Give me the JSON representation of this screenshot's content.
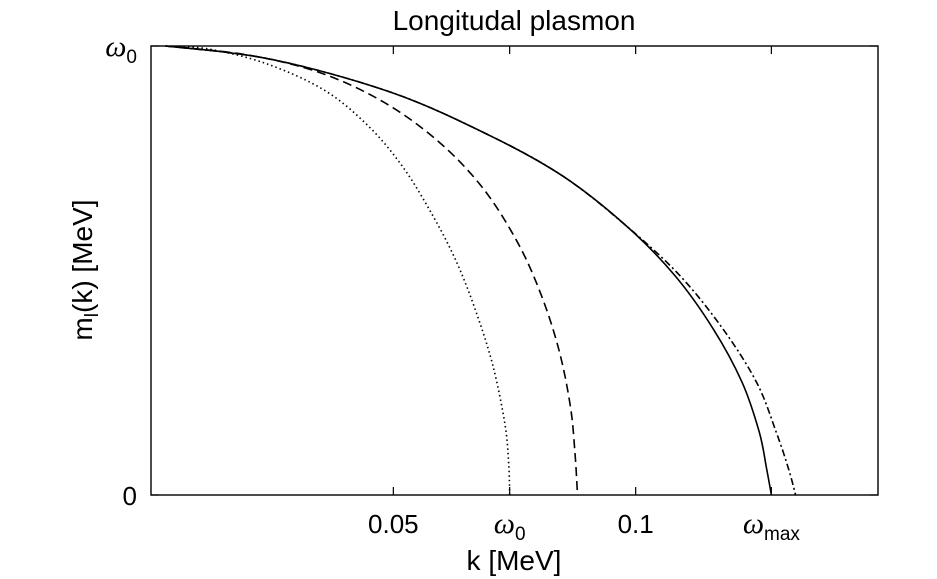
{
  "chart_data": {
    "type": "line",
    "title": "Longitudal plasmon",
    "xlabel": {
      "main": "k",
      "unit": "[MeV]"
    },
    "ylabel": {
      "main": "m",
      "sub": "l",
      "rest": "(k) [MeV]"
    },
    "xlim": [
      0,
      0.15
    ],
    "ylim": [
      0,
      1
    ],
    "x_ticks": [
      {
        "value": 0.05,
        "label": "0.05"
      },
      {
        "value": 0.074,
        "symbol": "ω",
        "sub": "0"
      },
      {
        "value": 0.1,
        "label": "0.1"
      },
      {
        "value": 0.128,
        "symbol": "ω",
        "sub": "max"
      }
    ],
    "y_ticks": [
      {
        "value": 1,
        "symbol": "ω",
        "sub": "0"
      },
      {
        "value": 0,
        "label": "0"
      }
    ],
    "grid": false,
    "legend": "none",
    "series": [
      {
        "style": "dotted",
        "x": [
          0.003,
          0.012,
          0.024,
          0.036,
          0.045,
          0.052,
          0.058,
          0.063,
          0.067,
          0.0705,
          0.073,
          0.0738,
          0.074
        ],
        "y": [
          1.0,
          0.993,
          0.96,
          0.9,
          0.82,
          0.73,
          0.625,
          0.52,
          0.41,
          0.29,
          0.16,
          0.07,
          0.0
        ]
      },
      {
        "style": "dashed",
        "x": [
          0.003,
          0.02,
          0.035,
          0.048,
          0.059,
          0.068,
          0.075,
          0.08,
          0.084,
          0.0865,
          0.0875,
          0.088
        ],
        "y": [
          1.0,
          0.98,
          0.94,
          0.875,
          0.79,
          0.69,
          0.575,
          0.46,
          0.33,
          0.2,
          0.09,
          0.0
        ]
      },
      {
        "style": "solid",
        "x": [
          0.003,
          0.025,
          0.05,
          0.07,
          0.085,
          0.098,
          0.108,
          0.116,
          0.122,
          0.1255,
          0.127,
          0.128
        ],
        "y": [
          1.0,
          0.97,
          0.895,
          0.8,
          0.71,
          0.6,
          0.49,
          0.37,
          0.25,
          0.14,
          0.06,
          0.0
        ]
      },
      {
        "style": "dash-dot",
        "x": [
          0.003,
          0.025,
          0.05,
          0.07,
          0.085,
          0.098,
          0.109,
          0.118,
          0.125,
          0.129,
          0.1315,
          0.133
        ],
        "y": [
          1.0,
          0.97,
          0.895,
          0.8,
          0.71,
          0.6,
          0.49,
          0.37,
          0.25,
          0.14,
          0.06,
          0.0
        ]
      }
    ]
  }
}
